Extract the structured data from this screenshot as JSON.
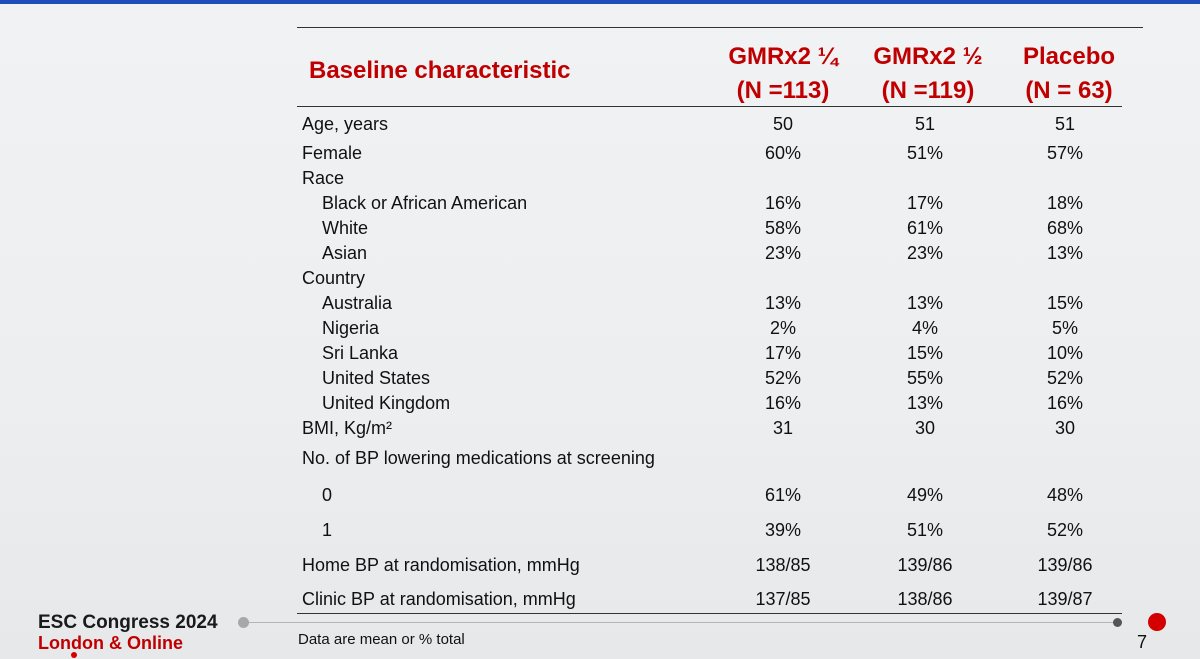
{
  "table": {
    "title": "Baseline characteristic",
    "columns": [
      {
        "line1": "GMRx2 ¼",
        "line2": "(N =113)"
      },
      {
        "line1": "GMRx2 ½",
        "line2": "(N =119)"
      },
      {
        "line1": "Placebo",
        "line2": "(N = 63)"
      }
    ],
    "rows": [
      {
        "label": "Age, years",
        "indent": false,
        "values": [
          "50",
          "51",
          "51"
        ]
      },
      {
        "label": "Female",
        "indent": false,
        "values": [
          "60%",
          "51%",
          "57%"
        ]
      },
      {
        "label": "Race",
        "indent": false,
        "values": [
          "",
          "",
          ""
        ]
      },
      {
        "label": "Black or African American",
        "indent": true,
        "values": [
          "16%",
          "17%",
          "18%"
        ]
      },
      {
        "label": "White",
        "indent": true,
        "values": [
          "58%",
          "61%",
          "68%"
        ]
      },
      {
        "label": "Asian",
        "indent": true,
        "values": [
          "23%",
          "23%",
          "13%"
        ]
      },
      {
        "label": "Country",
        "indent": false,
        "values": [
          "",
          "",
          ""
        ]
      },
      {
        "label": "Australia",
        "indent": true,
        "values": [
          "13%",
          "13%",
          "15%"
        ]
      },
      {
        "label": "Nigeria",
        "indent": true,
        "values": [
          "2%",
          "4%",
          "5%"
        ]
      },
      {
        "label": "Sri Lanka",
        "indent": true,
        "values": [
          "17%",
          "15%",
          "10%"
        ]
      },
      {
        "label": "United States",
        "indent": true,
        "values": [
          "52%",
          "55%",
          "52%"
        ]
      },
      {
        "label": "United Kingdom",
        "indent": true,
        "values": [
          "16%",
          "13%",
          "16%"
        ]
      },
      {
        "label": "BMI, Kg/m²",
        "indent": false,
        "values": [
          "31",
          "30",
          "30"
        ]
      },
      {
        "label": "No. of BP lowering medications at screening",
        "indent": false,
        "values": [
          "",
          "",
          ""
        ]
      },
      {
        "label": "0",
        "indent": true,
        "values": [
          "61%",
          "49%",
          "48%"
        ]
      },
      {
        "label": "1",
        "indent": true,
        "values": [
          "39%",
          "51%",
          "52%"
        ]
      },
      {
        "label": "Home BP at randomisation, mmHg",
        "indent": false,
        "values": [
          "138/85",
          "139/86",
          "139/86"
        ]
      },
      {
        "label": "Clinic BP at randomisation, mmHg",
        "indent": false,
        "values": [
          "137/85",
          "138/86",
          "139/87"
        ]
      }
    ]
  },
  "footer": {
    "congress": "ESC Congress 2024",
    "location": "London & Online",
    "note": "Data are mean or % total",
    "page": "7"
  },
  "colors": {
    "accent": "#c00000",
    "text": "#111111"
  }
}
